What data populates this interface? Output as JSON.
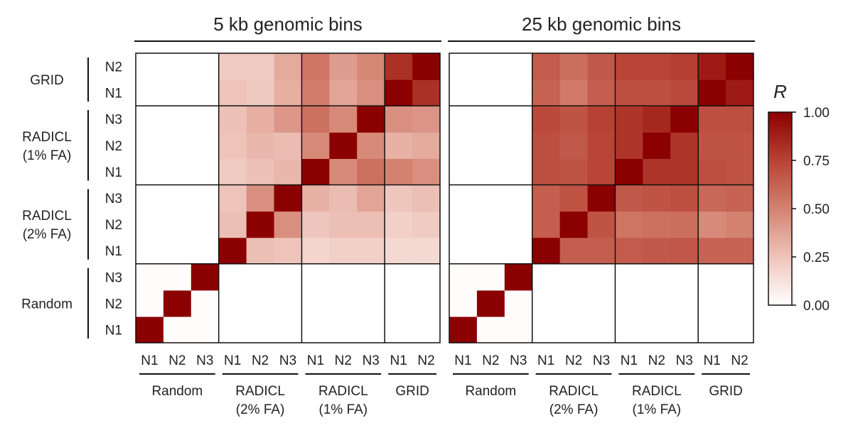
{
  "chart_data": {
    "type": "heatmap",
    "value_name": "R",
    "colorbar": {
      "title": "R",
      "range": [
        0,
        1
      ],
      "ticks": [
        "1.00",
        "0.75",
        "0.50",
        "0.25",
        "0.00"
      ],
      "low_color": "#ffffff",
      "high_color": "#8b0000"
    },
    "groups": [
      {
        "name": "Random",
        "samples": [
          "N1",
          "N2",
          "N3"
        ]
      },
      {
        "name": "RADICL (2% FA)",
        "samples": [
          "N1",
          "N2",
          "N3"
        ]
      },
      {
        "name": "RADICL (1% FA)",
        "samples": [
          "N1",
          "N2",
          "N3"
        ]
      },
      {
        "name": "GRID",
        "samples": [
          "N1",
          "N2"
        ]
      }
    ],
    "group_labels": {
      "x": [
        [
          "Random"
        ],
        [
          "RADICL",
          "(2% FA)"
        ],
        [
          "RADICL",
          "(1% FA)"
        ],
        [
          "GRID"
        ]
      ],
      "y": [
        [
          "Random"
        ],
        [
          "RADICL",
          "(2% FA)"
        ],
        [
          "RADICL",
          "(1% FA)"
        ],
        [
          "GRID"
        ]
      ]
    },
    "row_order": "Random N1 at bottom, GRID N2 at top",
    "panels": [
      {
        "title": "5 kb genomic bins",
        "matrix": [
          [
            1.0,
            0.01,
            0.01,
            0.0,
            0.0,
            0.0,
            0.0,
            0.0,
            0.0,
            0.0,
            0.0
          ],
          [
            0.01,
            1.0,
            0.01,
            0.0,
            0.0,
            0.0,
            0.0,
            0.0,
            0.0,
            0.0,
            0.0
          ],
          [
            0.01,
            0.01,
            1.0,
            0.0,
            0.0,
            0.0,
            0.0,
            0.0,
            0.0,
            0.0,
            0.0
          ],
          [
            0.0,
            0.0,
            0.0,
            1.0,
            0.27,
            0.25,
            0.18,
            0.2,
            0.2,
            0.16,
            0.16
          ],
          [
            0.0,
            0.0,
            0.0,
            0.27,
            1.0,
            0.45,
            0.24,
            0.27,
            0.27,
            0.2,
            0.22
          ],
          [
            0.0,
            0.0,
            0.0,
            0.25,
            0.45,
            1.0,
            0.32,
            0.28,
            0.37,
            0.24,
            0.27
          ],
          [
            0.0,
            0.0,
            0.0,
            0.22,
            0.26,
            0.3,
            1.0,
            0.47,
            0.57,
            0.5,
            0.45
          ],
          [
            0.0,
            0.0,
            0.0,
            0.25,
            0.3,
            0.28,
            0.47,
            1.0,
            0.47,
            0.32,
            0.35
          ],
          [
            0.0,
            0.0,
            0.0,
            0.26,
            0.33,
            0.42,
            0.57,
            0.47,
            1.0,
            0.45,
            0.43
          ],
          [
            0.0,
            0.0,
            0.0,
            0.25,
            0.23,
            0.33,
            0.52,
            0.37,
            0.45,
            1.0,
            0.82
          ],
          [
            0.0,
            0.0,
            0.0,
            0.22,
            0.22,
            0.35,
            0.55,
            0.4,
            0.48,
            0.82,
            1.0
          ]
        ]
      },
      {
        "title": "25 kb genomic bins",
        "matrix": [
          [
            1.0,
            0.01,
            0.01,
            0.0,
            0.0,
            0.0,
            0.0,
            0.0,
            0.0,
            0.0,
            0.0
          ],
          [
            0.01,
            1.0,
            0.01,
            0.0,
            0.0,
            0.0,
            0.0,
            0.0,
            0.0,
            0.0,
            0.0
          ],
          [
            0.01,
            0.01,
            1.0,
            0.0,
            0.0,
            0.0,
            0.0,
            0.0,
            0.0,
            0.0,
            0.0
          ],
          [
            0.0,
            0.0,
            0.0,
            1.0,
            0.64,
            0.64,
            0.65,
            0.66,
            0.67,
            0.62,
            0.62
          ],
          [
            0.0,
            0.0,
            0.0,
            0.64,
            1.0,
            0.68,
            0.55,
            0.57,
            0.58,
            0.47,
            0.5
          ],
          [
            0.0,
            0.0,
            0.0,
            0.64,
            0.68,
            1.0,
            0.66,
            0.68,
            0.7,
            0.6,
            0.62
          ],
          [
            0.0,
            0.0,
            0.0,
            0.7,
            0.68,
            0.74,
            1.0,
            0.8,
            0.8,
            0.7,
            0.68
          ],
          [
            0.0,
            0.0,
            0.0,
            0.7,
            0.66,
            0.74,
            0.8,
            1.0,
            0.8,
            0.68,
            0.68
          ],
          [
            0.0,
            0.0,
            0.0,
            0.72,
            0.68,
            0.75,
            0.8,
            0.85,
            1.0,
            0.7,
            0.7
          ],
          [
            0.0,
            0.0,
            0.0,
            0.62,
            0.53,
            0.64,
            0.7,
            0.7,
            0.72,
            1.0,
            0.9
          ],
          [
            0.0,
            0.0,
            0.0,
            0.65,
            0.58,
            0.66,
            0.74,
            0.74,
            0.76,
            0.9,
            1.0
          ]
        ]
      }
    ]
  }
}
